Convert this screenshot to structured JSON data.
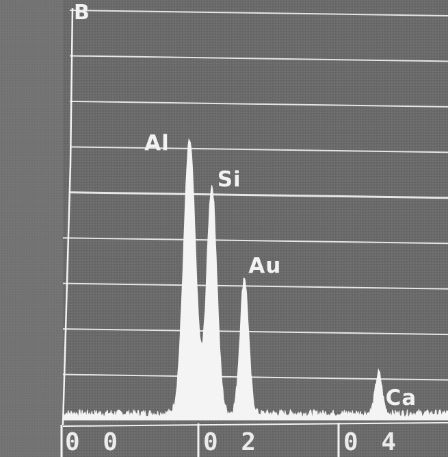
{
  "panel": {
    "label": "B"
  },
  "chart_data": {
    "type": "line",
    "title": "",
    "xlabel": "",
    "ylabel": "",
    "xlim": [
      0.0,
      0.45
    ],
    "ylim": [
      0,
      9
    ],
    "grid": true,
    "x_tick_labels": [
      {
        "value": 0.0,
        "label": "0 0"
      },
      {
        "value": 0.2,
        "label": "0 2"
      },
      {
        "value": 0.4,
        "label": "0 4"
      }
    ],
    "annotations": [
      {
        "text": "Al",
        "x": 0.148
      },
      {
        "text": "Si",
        "x": 0.174
      },
      {
        "text": "Au",
        "x": 0.212
      },
      {
        "text": "Ca",
        "x": 0.369
      }
    ],
    "peaks": [
      {
        "element": "Al",
        "x": 0.148,
        "height": 6.0,
        "width": 0.007
      },
      {
        "element": "Si",
        "x": 0.174,
        "height": 5.0,
        "width": 0.006
      },
      {
        "element": "Au",
        "x": 0.212,
        "height": 3.0,
        "width": 0.005
      },
      {
        "element": "Ca",
        "x": 0.369,
        "height": 0.9,
        "width": 0.004
      }
    ],
    "baseline": 0.15
  },
  "style": {
    "background": "#6b6b6b",
    "left_band": "#7a7a7a",
    "line_color": "#f4f4f4",
    "grid_color": "#e6e6e6"
  }
}
